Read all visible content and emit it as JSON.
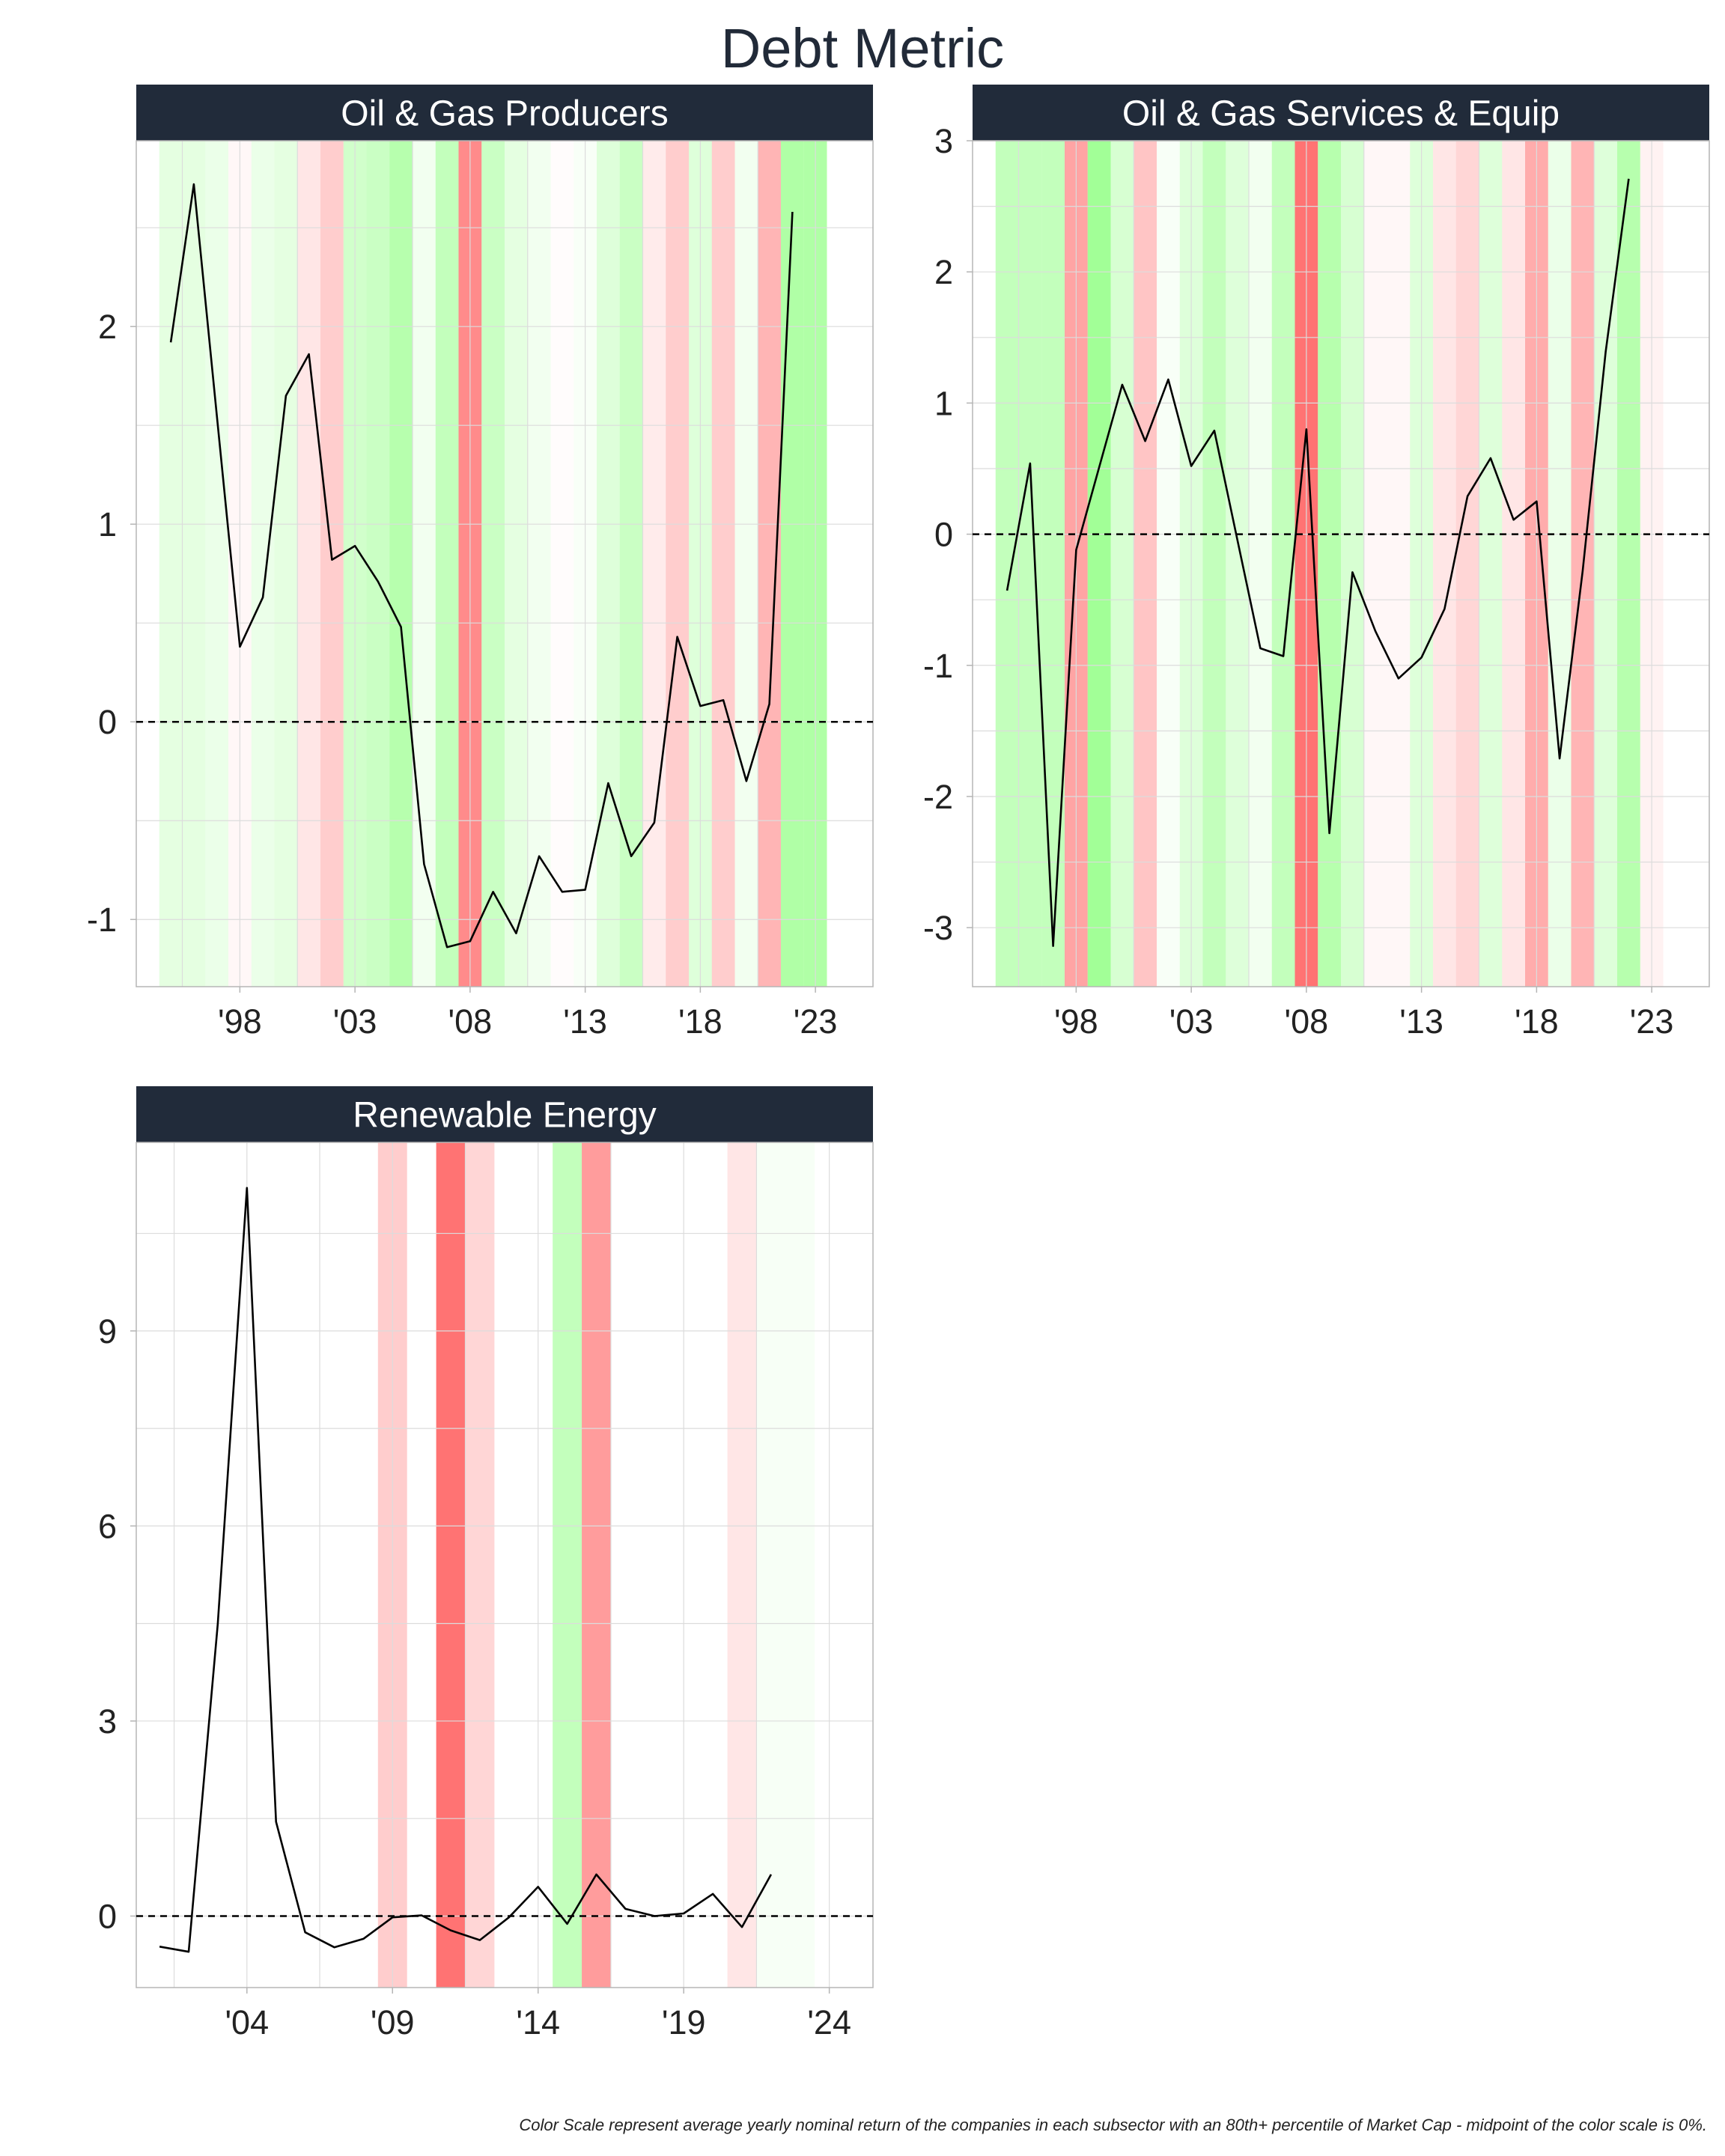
{
  "title": "Debt Metric",
  "caption": "Color Scale represent average yearly nominal return of the companies in each subsector with an 80th+ percentile of Market Cap - midpoint of the color scale is 0%.",
  "colors": {
    "header_bg": "#212b3a",
    "header_text": "#ffffff",
    "line": "#000000",
    "zero_line": "#000000",
    "grid": "#dcdcdc",
    "frame": "#b5b5b5",
    "green": "#7bff6b",
    "red": "#ff5a5a"
  },
  "chart_data": [
    {
      "type": "line",
      "panel": "Oil & Gas Producers",
      "x": [
        1995,
        1996,
        1997,
        1998,
        1999,
        2000,
        2001,
        2002,
        2003,
        2004,
        2005,
        2006,
        2007,
        2008,
        2009,
        2010,
        2011,
        2012,
        2013,
        2014,
        2015,
        2016,
        2017,
        2018,
        2019,
        2020,
        2021,
        2022
      ],
      "y": [
        1.92,
        2.72,
        1.55,
        0.38,
        0.63,
        1.65,
        1.86,
        0.82,
        0.89,
        0.71,
        0.48,
        -0.72,
        -1.14,
        -1.11,
        -0.86,
        -1.07,
        -0.68,
        -0.86,
        -0.85,
        -0.31,
        -0.68,
        -0.51,
        0.43,
        0.08,
        0.11,
        -0.3,
        0.09,
        2.58
      ],
      "xlim": [
        1993.5,
        2025.5
      ],
      "ylim": [
        -1.34,
        2.94
      ],
      "yticks": [
        -1,
        0,
        1,
        2
      ],
      "ytick_labels": [
        "-1",
        "0",
        "1",
        "2"
      ],
      "xticks": [
        1998,
        2003,
        2008,
        2013,
        2018,
        2023
      ],
      "xtick_labels": [
        "'98",
        "'03",
        "'08",
        "'13",
        "'18",
        "'23"
      ],
      "hline": 0,
      "bands": [
        {
          "year": 1995,
          "ret": 0.2
        },
        {
          "year": 1996,
          "ret": 0.2
        },
        {
          "year": 1997,
          "ret": 0.15
        },
        {
          "year": 1998,
          "ret": -0.05
        },
        {
          "year": 1999,
          "ret": 0.15
        },
        {
          "year": 2000,
          "ret": 0.2
        },
        {
          "year": 2001,
          "ret": -0.15
        },
        {
          "year": 2002,
          "ret": -0.3
        },
        {
          "year": 2003,
          "ret": 0.35
        },
        {
          "year": 2004,
          "ret": 0.4
        },
        {
          "year": 2005,
          "ret": 0.55
        },
        {
          "year": 2006,
          "ret": 0.1
        },
        {
          "year": 2007,
          "ret": 0.45
        },
        {
          "year": 2008,
          "ret": -0.7
        },
        {
          "year": 2009,
          "ret": 0.4
        },
        {
          "year": 2010,
          "ret": 0.2
        },
        {
          "year": 2011,
          "ret": 0.1
        },
        {
          "year": 2012,
          "ret": -0.02
        },
        {
          "year": 2013,
          "ret": 0.05
        },
        {
          "year": 2014,
          "ret": 0.25
        },
        {
          "year": 2015,
          "ret": 0.4
        },
        {
          "year": 2016,
          "ret": -0.12
        },
        {
          "year": 2017,
          "ret": -0.3
        },
        {
          "year": 2018,
          "ret": 0.25
        },
        {
          "year": 2019,
          "ret": -0.3
        },
        {
          "year": 2020,
          "ret": 0.1
        },
        {
          "year": 2021,
          "ret": -0.45
        },
        {
          "year": 2022,
          "ret": 0.6
        },
        {
          "year": 2023,
          "ret": 0.6
        }
      ]
    },
    {
      "type": "line",
      "panel": "Oil & Gas Services & Equip",
      "x": [
        1995,
        1996,
        1997,
        1998,
        1999,
        2000,
        2001,
        2002,
        2003,
        2004,
        2005,
        2006,
        2007,
        2008,
        2009,
        2010,
        2011,
        2012,
        2013,
        2014,
        2015,
        2016,
        2017,
        2018,
        2019,
        2020,
        2021,
        2022
      ],
      "y": [
        -0.43,
        0.54,
        -3.14,
        -0.12,
        0.51,
        1.14,
        0.71,
        1.18,
        0.52,
        0.79,
        -0.04,
        -0.87,
        -0.93,
        0.8,
        -2.28,
        -0.29,
        -0.74,
        -1.1,
        -0.94,
        -0.57,
        0.29,
        0.58,
        0.11,
        0.25,
        -1.71,
        -0.28,
        1.39,
        2.71
      ],
      "xlim": [
        1993.5,
        2025.5
      ],
      "ylim": [
        -3.45,
        3.0
      ],
      "yticks": [
        -3,
        -2,
        -1,
        0,
        1,
        2,
        3
      ],
      "ytick_labels": [
        "-3",
        "-2",
        "-1",
        "0",
        "1",
        "2",
        "3"
      ],
      "xticks": [
        1998,
        2003,
        2008,
        2013,
        2018,
        2023
      ],
      "xtick_labels": [
        "'98",
        "'03",
        "'08",
        "'13",
        "'18",
        "'23"
      ],
      "hline": 0,
      "bands": [
        {
          "year": 1995,
          "ret": 0.45
        },
        {
          "year": 1996,
          "ret": 0.45
        },
        {
          "year": 1997,
          "ret": 0.45
        },
        {
          "year": 1998,
          "ret": -0.55
        },
        {
          "year": 1999,
          "ret": 0.7
        },
        {
          "year": 2000,
          "ret": 0.3
        },
        {
          "year": 2001,
          "ret": -0.35
        },
        {
          "year": 2002,
          "ret": 0.05
        },
        {
          "year": 2003,
          "ret": 0.25
        },
        {
          "year": 2004,
          "ret": 0.45
        },
        {
          "year": 2005,
          "ret": 0.25
        },
        {
          "year": 2006,
          "ret": 0.1
        },
        {
          "year": 2007,
          "ret": 0.45
        },
        {
          "year": 2008,
          "ret": -0.85
        },
        {
          "year": 2009,
          "ret": 0.55
        },
        {
          "year": 2010,
          "ret": 0.3
        },
        {
          "year": 2011,
          "ret": -0.05
        },
        {
          "year": 2012,
          "ret": -0.05
        },
        {
          "year": 2013,
          "ret": 0.25
        },
        {
          "year": 2014,
          "ret": -0.15
        },
        {
          "year": 2015,
          "ret": -0.25
        },
        {
          "year": 2016,
          "ret": 0.25
        },
        {
          "year": 2017,
          "ret": -0.15
        },
        {
          "year": 2018,
          "ret": -0.5
        },
        {
          "year": 2019,
          "ret": 0.15
        },
        {
          "year": 2020,
          "ret": -0.45
        },
        {
          "year": 2021,
          "ret": 0.25
        },
        {
          "year": 2022,
          "ret": 0.55
        },
        {
          "year": 2023,
          "ret": -0.08
        }
      ]
    },
    {
      "type": "line",
      "panel": "Renewable Energy",
      "x": [
        2001,
        2002,
        2003,
        2004,
        2005,
        2006,
        2007,
        2008,
        2009,
        2010,
        2011,
        2012,
        2013,
        2014,
        2015,
        2016,
        2017,
        2018,
        2019,
        2020,
        2021,
        2022
      ],
      "y": [
        -0.47,
        -0.55,
        4.5,
        11.2,
        1.45,
        -0.25,
        -0.48,
        -0.35,
        -0.02,
        0.01,
        -0.22,
        -0.37,
        -0.02,
        0.45,
        -0.12,
        0.64,
        0.11,
        0.0,
        0.04,
        0.34,
        -0.17,
        0.64
      ],
      "xlim": [
        2000.2,
        2025.5
      ],
      "ylim": [
        -1.1,
        11.9
      ],
      "yticks": [
        0,
        3,
        6,
        9
      ],
      "ytick_labels": [
        "0",
        "3",
        "6",
        "9"
      ],
      "xticks": [
        2004,
        2009,
        2014,
        2019,
        2024
      ],
      "xtick_labels": [
        "'04",
        "'09",
        "'14",
        "'19",
        "'24"
      ],
      "hline": 0,
      "bands": [
        {
          "year": 2009,
          "ret": -0.3
        },
        {
          "year": 2011,
          "ret": -0.85
        },
        {
          "year": 2012,
          "ret": -0.25
        },
        {
          "year": 2015,
          "ret": 0.45
        },
        {
          "year": 2016,
          "ret": -0.6
        },
        {
          "year": 2021,
          "ret": -0.15
        },
        {
          "year": 2022,
          "ret": 0.06
        },
        {
          "year": 2023,
          "ret": 0.06
        }
      ]
    }
  ]
}
